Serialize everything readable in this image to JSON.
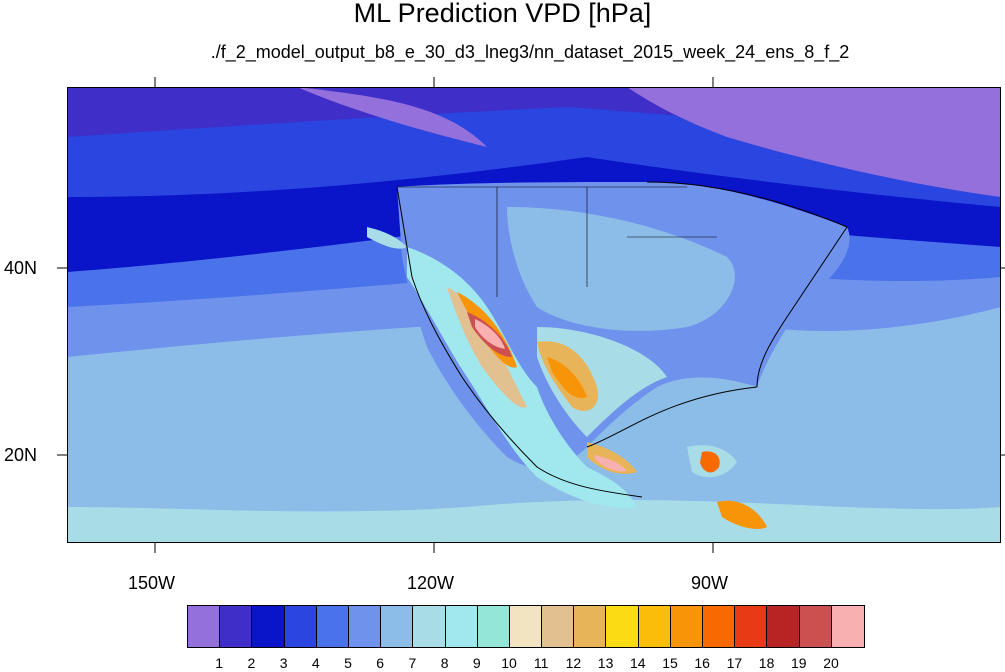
{
  "title": "ML Prediction VPD [hPa]",
  "subtitle": "./f_2_model_output_b8_e_30_d3_lneg3/nn_dataset_2015_week_24_ens_8_f_2",
  "axes": {
    "x_labels": [
      "150W",
      "120W",
      "90W"
    ],
    "y_labels": [
      "40N",
      "20N"
    ]
  },
  "colorbar": {
    "colors": [
      "#9370db",
      "#3f2ec8",
      "#0a14c8",
      "#2a45e0",
      "#4a72ea",
      "#6f92ec",
      "#8cbde8",
      "#a8dce6",
      "#a0e8ee",
      "#93e6d8",
      "#f2e4c0",
      "#e2c090",
      "#e8b45a",
      "#fadc14",
      "#fcbc0a",
      "#f89408",
      "#f86a00",
      "#e83a14",
      "#b82424",
      "#cc5050",
      "#f8b0b0"
    ],
    "labels": [
      "1",
      "2",
      "3",
      "4",
      "5",
      "6",
      "7",
      "8",
      "9",
      "10",
      "11",
      "12",
      "13",
      "14",
      "15",
      "16",
      "17",
      "18",
      "19",
      "20"
    ]
  },
  "colors": {
    "ocean_north": "#3f2ec8",
    "ocean_deep": "#0a14c8",
    "ocean_mid": "#6f92ec",
    "ocean_south": "#8cbde8",
    "land_light": "#a0e8ee",
    "hot_core": "#f8b0b0"
  }
}
